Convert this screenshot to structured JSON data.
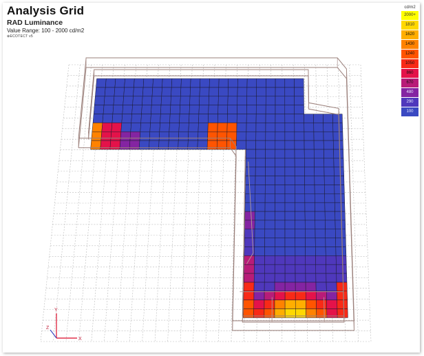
{
  "header": {
    "title": "Analysis Grid",
    "subtitle": "RAD Luminance",
    "range": "Value Range: 100 - 2000 cd/m2",
    "brand": "ECOTECT v5"
  },
  "legend": {
    "unit": "cd/m2",
    "items": [
      {
        "label": "2000+",
        "color": "#ffff00"
      },
      {
        "label": "1810",
        "color": "#ffd800"
      },
      {
        "label": "1620",
        "color": "#ffae00"
      },
      {
        "label": "1430",
        "color": "#ff8200"
      },
      {
        "label": "1240",
        "color": "#ff5400"
      },
      {
        "label": "1050",
        "color": "#f82a17"
      },
      {
        "label": "860",
        "color": "#e4124a"
      },
      {
        "label": "670",
        "color": "#b81c78"
      },
      {
        "label": "480",
        "color": "#8424a2"
      },
      {
        "label": "290",
        "color": "#4f38bc"
      },
      {
        "label": "100",
        "color": "#3a49c2"
      }
    ]
  },
  "axes": {
    "x_label": "X",
    "y_label": "Y",
    "z_label": "Z"
  }
}
